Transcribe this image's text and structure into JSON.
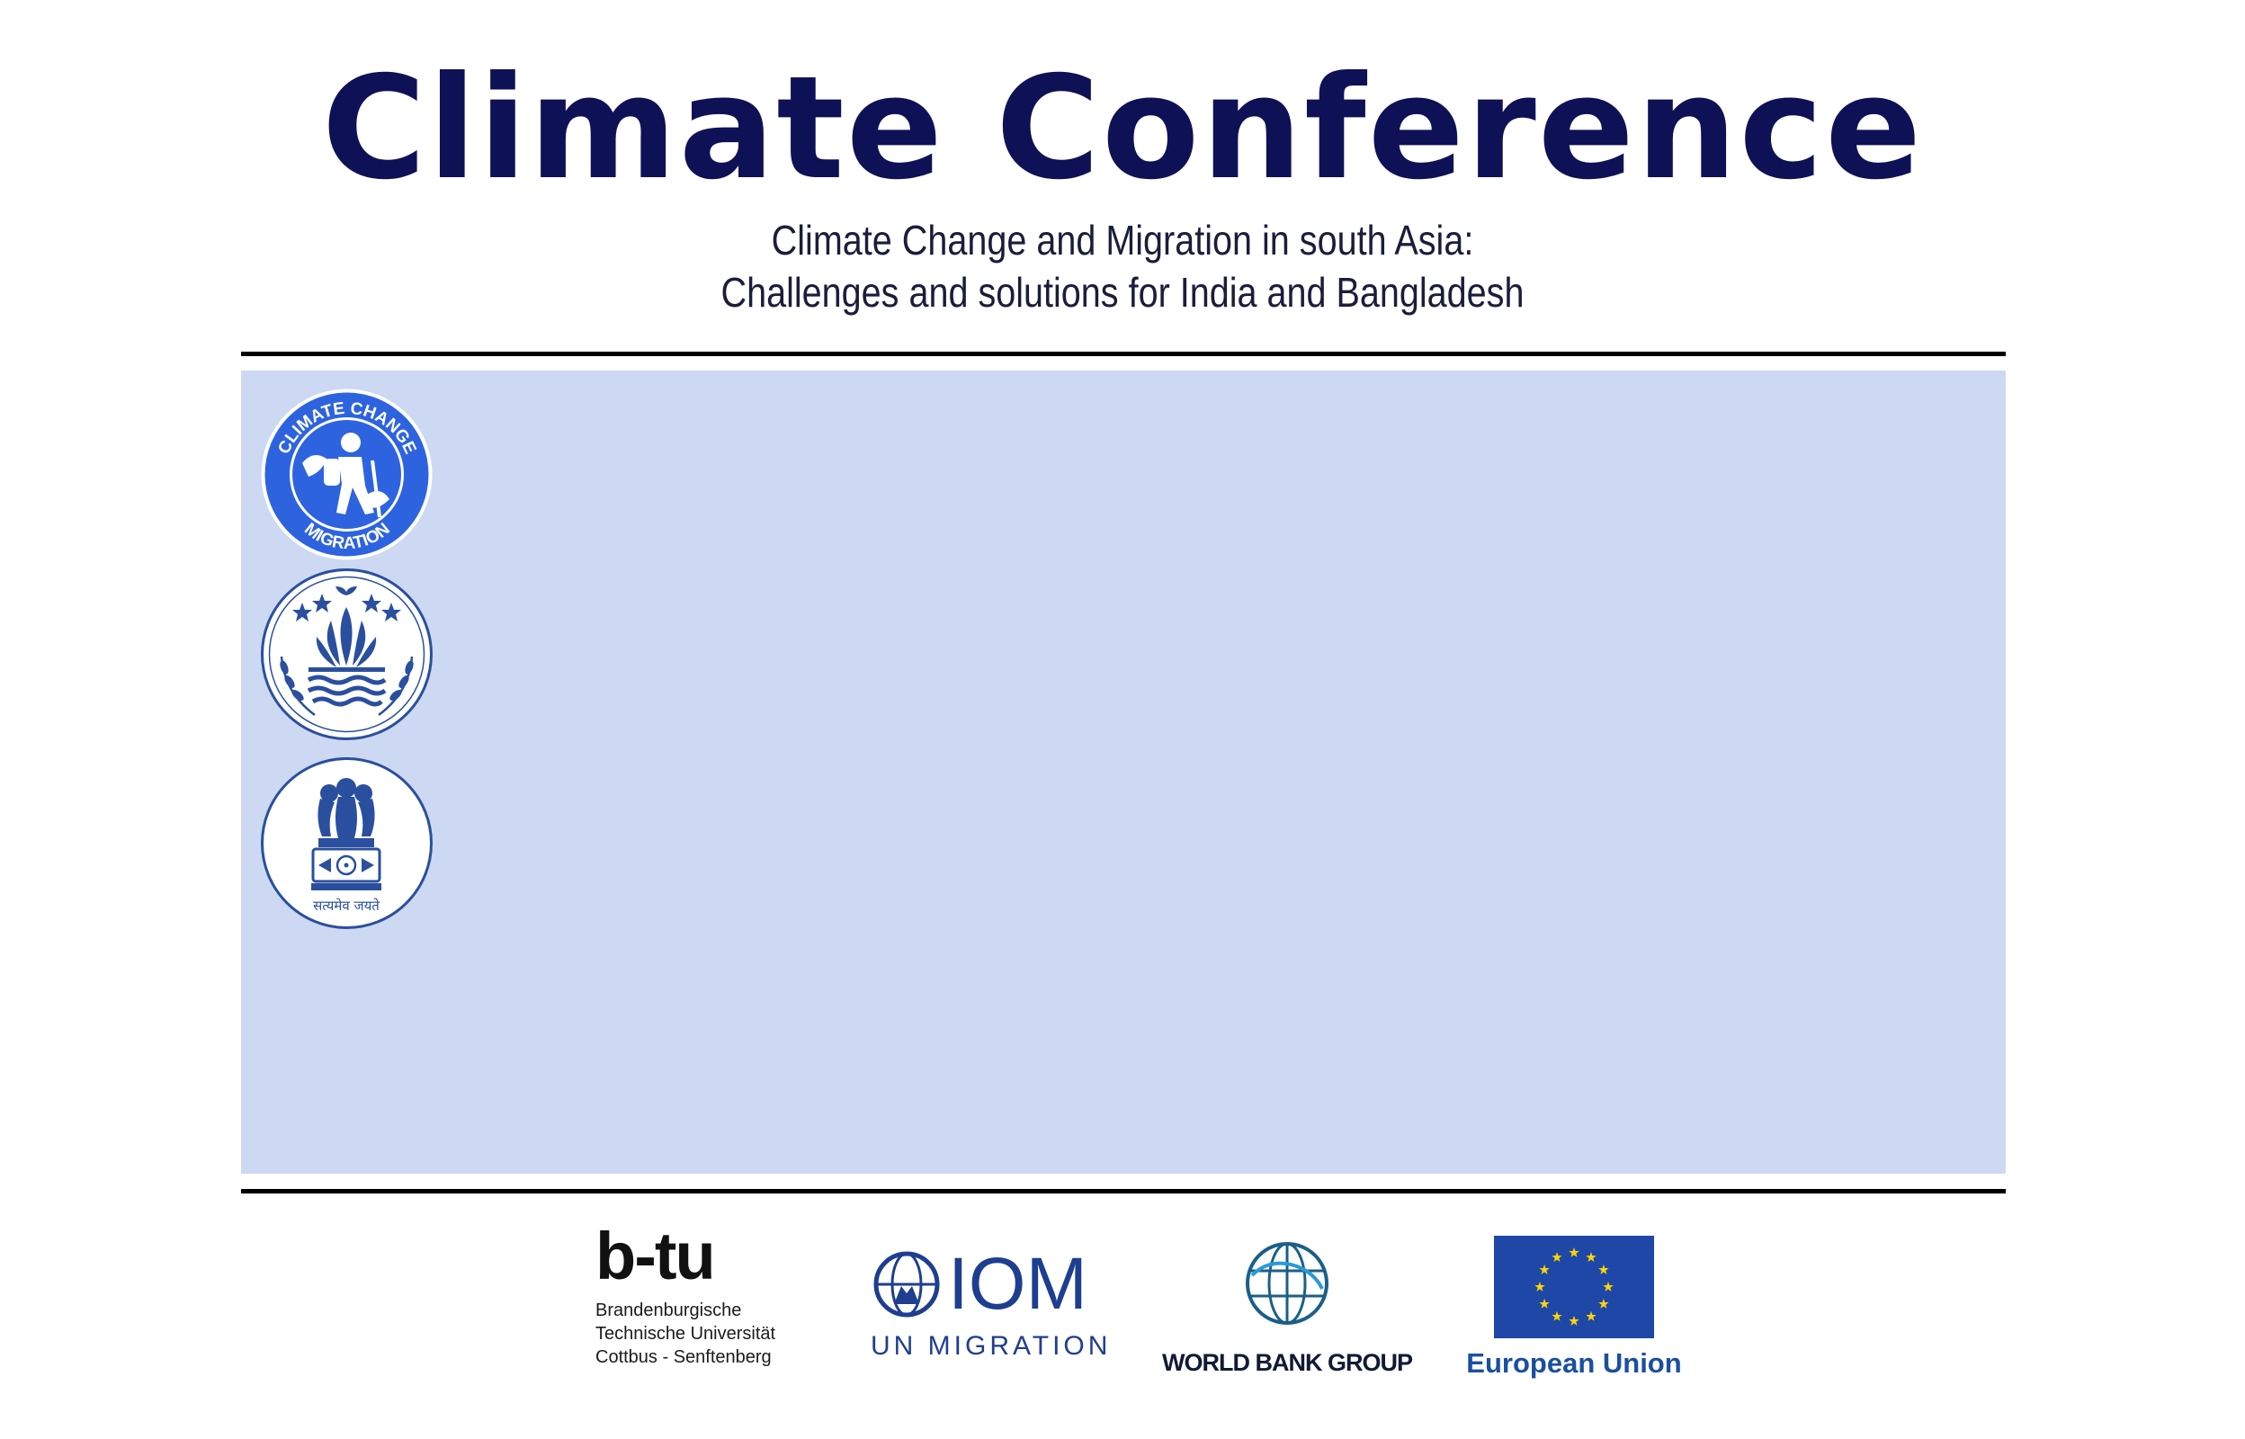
{
  "header": {
    "title": "Climate Conference",
    "subtitle_line1": "Climate Change and Migration in south Asia:",
    "subtitle_line2": "Challenges and solutions for India and Bangladesh"
  },
  "seals": {
    "climate_migration": {
      "top_text": "CLIMATE CHANGE",
      "bottom_text": "MIGRATION",
      "icon": "migrant-globe-icon"
    },
    "bangladesh": {
      "icon": "bangladesh-emblem-icon"
    },
    "india": {
      "motto": "सत्यमेव जयते",
      "icon": "india-emblem-icon"
    }
  },
  "sponsors": {
    "btu": {
      "logo_text": "b-tu",
      "line1": "Brandenburgische",
      "line2": "Technische Universität",
      "line3": "Cottbus - Senftenberg"
    },
    "iom": {
      "logo_text": "IOM",
      "subtitle": "UN MIGRATION"
    },
    "world_bank": {
      "label": "WORLD BANK GROUP"
    },
    "eu": {
      "label": "European Union"
    }
  },
  "colors": {
    "title": "#0f1157",
    "panel": "#cdd8f2",
    "seal_blue": "#2e63e0",
    "seal_line": "#2a4f9e",
    "eu_blue": "#1f47a8",
    "eu_star": "#ffd400"
  }
}
